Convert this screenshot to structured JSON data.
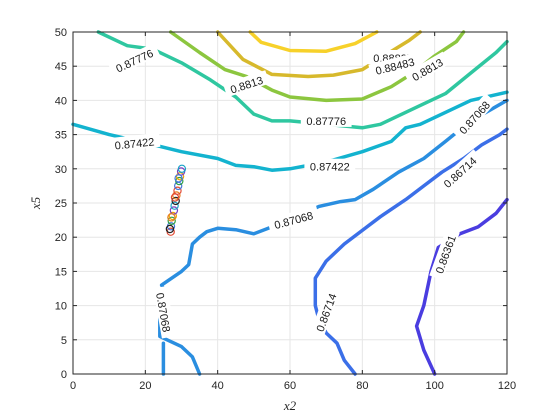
{
  "chart_data": {
    "type": "contour",
    "xlabel": "x2",
    "ylabel": "x5",
    "xlim": [
      0,
      120
    ],
    "ylim": [
      0,
      50
    ],
    "xticks": [
      0,
      20,
      40,
      60,
      80,
      100,
      120
    ],
    "yticks": [
      0,
      5,
      10,
      15,
      20,
      25,
      30,
      35,
      40,
      45,
      50
    ],
    "grid": true,
    "contours": [
      {
        "level": "0.88837",
        "color": "#f7d12a",
        "points": [
          [
            49,
            50
          ],
          [
            52,
            48.5
          ],
          [
            60,
            47.3
          ],
          [
            70,
            47.2
          ],
          [
            78,
            48.3
          ],
          [
            84,
            50
          ]
        ],
        "labels": [
          {
            "text": "0.88837",
            "at": [
              88.5,
              46.2
            ],
            "angle": 0
          }
        ]
      },
      {
        "level": "0.88483",
        "color": "#d7b92c",
        "points": [
          [
            40,
            50
          ],
          [
            47,
            46
          ],
          [
            55,
            43.8
          ],
          [
            65,
            43.5
          ],
          [
            72,
            43.7
          ],
          [
            80,
            44.5
          ],
          [
            86,
            46.5
          ],
          [
            93,
            48.8
          ],
          [
            96,
            50
          ]
        ],
        "labels": [
          {
            "text": "0.88483",
            "at": [
              89,
              45
            ],
            "angle": -14
          }
        ]
      },
      {
        "level": "0.8813",
        "color": "#8cc63f",
        "points": [
          [
            27,
            50
          ],
          [
            35,
            47
          ],
          [
            42,
            44.5
          ],
          [
            48,
            43.5
          ],
          [
            55,
            41.5
          ],
          [
            60,
            40.5
          ],
          [
            70,
            40
          ],
          [
            80,
            40.2
          ],
          [
            88,
            42
          ],
          [
            94,
            44
          ],
          [
            100,
            46.5
          ],
          [
            106,
            48.6
          ],
          [
            108,
            50
          ]
        ],
        "labels": [
          {
            "text": "0.8813",
            "at": [
              48,
              42.3
            ],
            "angle": -18
          },
          {
            "text": "0.8813",
            "at": [
              98,
              44.5
            ],
            "angle": -30
          }
        ]
      },
      {
        "level": "0.87776",
        "color": "#2fc7a0",
        "points": [
          [
            7,
            50
          ],
          [
            15,
            48
          ],
          [
            22,
            47.5
          ],
          [
            30,
            45.5
          ],
          [
            38,
            43
          ],
          [
            45,
            40.5
          ],
          [
            50,
            38
          ],
          [
            55,
            37
          ],
          [
            60,
            37
          ],
          [
            70,
            36.5
          ],
          [
            80,
            36
          ],
          [
            85,
            36.5
          ],
          [
            95,
            39
          ],
          [
            103,
            41
          ],
          [
            110,
            44
          ],
          [
            117,
            47
          ],
          [
            120,
            48.6
          ]
        ],
        "labels": [
          {
            "text": "0.87776",
            "at": [
              17,
              45.8
            ],
            "angle": -25
          },
          {
            "text": "0.87776",
            "at": [
              70,
              37
            ],
            "angle": 0
          }
        ]
      },
      {
        "level": "0.87422",
        "color": "#13b3cf",
        "points": [
          [
            0,
            36.5
          ],
          [
            10,
            35
          ],
          [
            20,
            33.8
          ],
          [
            30,
            32.5
          ],
          [
            40,
            31.5
          ],
          [
            45,
            30.5
          ],
          [
            50,
            30.3
          ],
          [
            55,
            29.8
          ],
          [
            60,
            30
          ],
          [
            70,
            31
          ],
          [
            80,
            32.5
          ],
          [
            88,
            34
          ],
          [
            92,
            36
          ],
          [
            96,
            36.5
          ],
          [
            104,
            38.5
          ],
          [
            110,
            40
          ],
          [
            120,
            41.2
          ]
        ],
        "labels": [
          {
            "text": "0.87422",
            "at": [
              17,
              33.7
            ],
            "angle": -6
          },
          {
            "text": "0.87422",
            "at": [
              71,
              30.3
            ],
            "angle": 0
          },
          {
            "text": "0.87068",
            "at": [
              111,
              37.5
            ],
            "angle": -48
          }
        ]
      },
      {
        "level": "0.87068",
        "color": "#2a8ee0",
        "points": [
          [
            25,
            4.5
          ],
          [
            25,
            0
          ]
        ],
        "path2": [
          [
            35,
            0
          ],
          [
            33,
            2.5
          ],
          [
            30,
            4
          ],
          [
            24,
            5.5
          ],
          [
            24,
            8
          ],
          [
            25.5,
            12
          ],
          [
            24.5,
            13
          ],
          [
            30,
            15
          ],
          [
            32,
            16
          ],
          [
            33,
            19
          ],
          [
            35,
            20
          ],
          [
            37,
            20.8
          ],
          [
            40,
            21.3
          ],
          [
            45,
            21.1
          ],
          [
            50,
            20.5
          ],
          [
            55,
            21.5
          ],
          [
            62,
            23
          ],
          [
            68,
            24.5
          ],
          [
            74,
            25.2
          ],
          [
            78,
            25.5
          ],
          [
            83,
            27
          ],
          [
            90,
            29.5
          ],
          [
            97,
            31.5
          ],
          [
            103,
            34
          ],
          [
            110,
            37
          ],
          [
            115,
            38.5
          ],
          [
            120,
            40
          ]
        ],
        "labels": [
          {
            "text": "0.87068",
            "at": [
              25,
              9
            ],
            "angle": 80
          },
          {
            "text": "0.87068",
            "at": [
              61,
              22.5
            ],
            "angle": -15
          }
        ]
      },
      {
        "level": "0.86714",
        "color": "#3b6fe8",
        "points": [
          [
            78,
            0
          ],
          [
            75,
            2
          ],
          [
            73,
            4.5
          ],
          [
            70,
            6
          ],
          [
            68,
            8
          ],
          [
            67,
            10
          ],
          [
            67,
            14
          ],
          [
            70,
            16.5
          ],
          [
            75,
            19
          ],
          [
            80,
            21
          ],
          [
            85,
            23
          ],
          [
            92,
            25.5
          ],
          [
            97,
            27.5
          ],
          [
            102,
            29.5
          ],
          [
            108,
            31.5
          ],
          [
            113,
            33.5
          ],
          [
            118,
            35
          ],
          [
            120,
            35.8
          ]
        ],
        "labels": [
          {
            "text": "0.86714",
            "at": [
              70,
              9
            ],
            "angle": -70
          },
          {
            "text": "0.86714",
            "at": [
              107,
              29.5
            ],
            "angle": -42
          }
        ]
      },
      {
        "level": "0.86361",
        "color": "#4a3de0",
        "points": [
          [
            100,
            0
          ],
          [
            97,
            3.5
          ],
          [
            95,
            7
          ],
          [
            97,
            10
          ],
          [
            99,
            15
          ],
          [
            101,
            18.5
          ],
          [
            107,
            20.5
          ],
          [
            112,
            21.5
          ],
          [
            117,
            23.5
          ],
          [
            120,
            25.5
          ]
        ],
        "labels": [
          {
            "text": "0.86361",
            "at": [
              103,
              17.5
            ],
            "angle": -70
          }
        ]
      }
    ],
    "scatter": {
      "points": [
        [
          27,
          20.8
        ],
        [
          27.1,
          21.6
        ],
        [
          27.3,
          22.4
        ],
        [
          27.6,
          23.1
        ],
        [
          27.9,
          23.9
        ],
        [
          28.1,
          24.6
        ],
        [
          28.4,
          25.3
        ],
        [
          28.6,
          26.1
        ],
        [
          28.9,
          26.8
        ],
        [
          29.1,
          27.5
        ],
        [
          29.4,
          28.2
        ],
        [
          29.6,
          28.9
        ],
        [
          29.9,
          29.6
        ],
        [
          30.1,
          30.0
        ],
        [
          26.8,
          21.2
        ],
        [
          27.2,
          22.9
        ],
        [
          28.2,
          25.8
        ],
        [
          29.2,
          28.6
        ]
      ],
      "marker_colors": [
        "#e24a33",
        "#4477dd",
        "#2f9e44",
        "#f0a202",
        "#7b3fbf",
        "#1aa3c7",
        "#222222",
        "#e67e22"
      ]
    }
  }
}
